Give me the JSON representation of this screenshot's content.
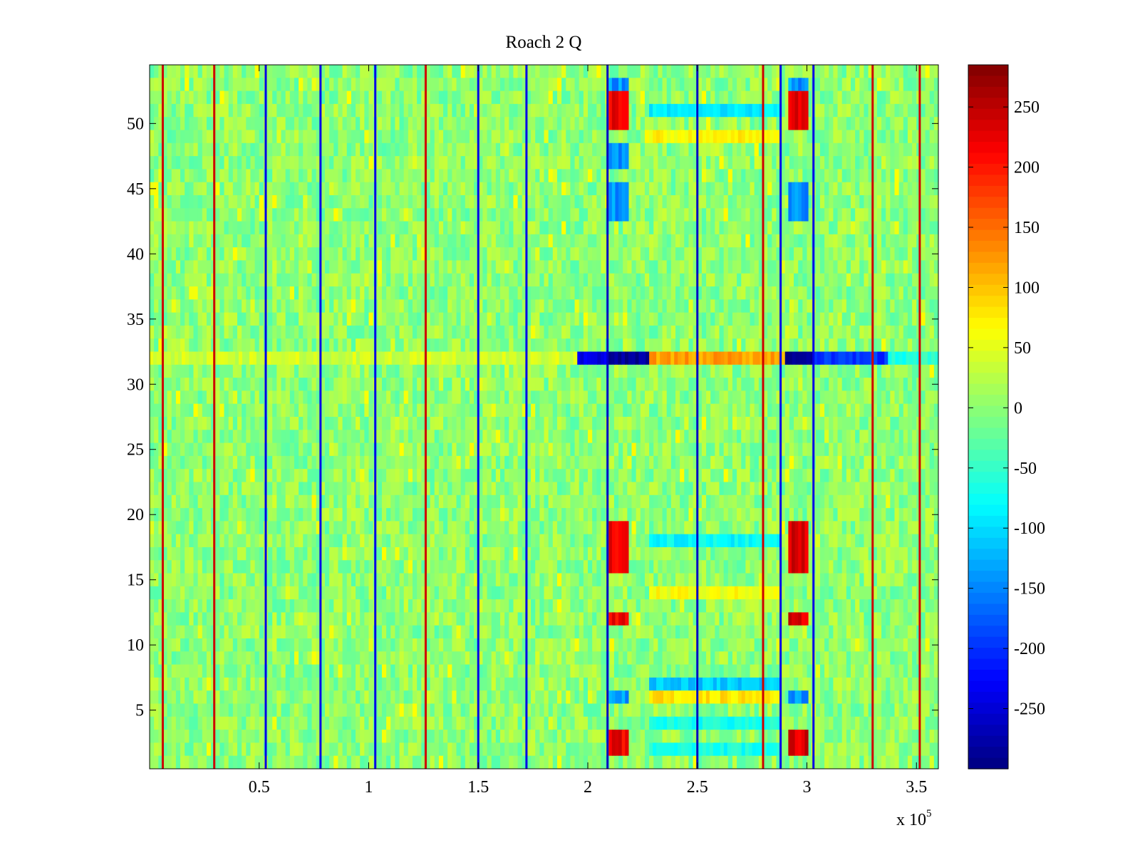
{
  "chart_data": {
    "type": "heatmap",
    "title": "Roach 2 Q",
    "xlabel": "",
    "ylabel": "",
    "x_range": [
      0,
      360000
    ],
    "y_range": [
      0.5,
      54.5
    ],
    "x_ticks": [
      50000,
      100000,
      150000,
      200000,
      250000,
      300000,
      350000
    ],
    "x_tick_labels": [
      "0.5",
      "1",
      "1.5",
      "2",
      "2.5",
      "3",
      "3.5"
    ],
    "x_exponent_prefix": "x 10",
    "x_exponent": "5",
    "y_ticks": [
      5,
      10,
      15,
      20,
      25,
      30,
      35,
      40,
      45,
      50
    ],
    "y_tick_labels": [
      "5",
      "10",
      "15",
      "20",
      "25",
      "30",
      "35",
      "40",
      "45",
      "50"
    ],
    "colorbar": {
      "colormap": "jet",
      "range": [
        -300,
        285
      ],
      "ticks": [
        250,
        200,
        150,
        100,
        50,
        0,
        -50,
        -100,
        -150,
        -200,
        -250
      ],
      "tick_labels": [
        "250",
        "200",
        "150",
        "100",
        "50",
        "0",
        "-50",
        "-100",
        "-150",
        "-200",
        "-250"
      ]
    },
    "background_level": 0,
    "narrow_vertical_lines": [
      {
        "x": 6000,
        "value": 240
      },
      {
        "x": 29500,
        "value": 240
      },
      {
        "x": 53000,
        "value": -240
      },
      {
        "x": 78000,
        "value": -240
      },
      {
        "x": 103000,
        "value": -240
      },
      {
        "x": 126000,
        "value": 240
      },
      {
        "x": 150000,
        "value": -240
      },
      {
        "x": 172000,
        "value": -240
      },
      {
        "x": 209000,
        "value": -260
      },
      {
        "x": 250000,
        "value": -260
      },
      {
        "x": 280000,
        "value": 240
      },
      {
        "x": 288000,
        "value": -240
      },
      {
        "x": 303000,
        "value": -240
      },
      {
        "x": 330000,
        "value": 240
      },
      {
        "x": 351500,
        "value": 240
      }
    ],
    "bright_columns": [
      {
        "x_range": [
          209500,
          218500
        ],
        "y_ranges": [
          [
            49.5,
            52.5
          ],
          [
            15.5,
            19.5
          ],
          [
            11.5,
            12.5
          ],
          [
            1.5,
            3.5
          ]
        ],
        "value": 220
      },
      {
        "x_range": [
          291500,
          300500
        ],
        "y_ranges": [
          [
            49.5,
            52.5
          ],
          [
            15.5,
            19.5
          ],
          [
            11.5,
            12.5
          ],
          [
            1.5,
            3.5
          ]
        ],
        "value": 230
      }
    ],
    "dark_columns": [
      {
        "x_range": [
          209500,
          218500
        ],
        "y_ranges": [
          [
            52.5,
            53.5
          ],
          [
            46.5,
            48.5
          ],
          [
            42.5,
            45.5
          ],
          [
            5.5,
            6.5
          ]
        ],
        "value": -140
      },
      {
        "x_range": [
          291500,
          300500
        ],
        "y_ranges": [
          [
            52.5,
            53.5
          ],
          [
            42.5,
            45.5
          ],
          [
            5.5,
            6.5
          ]
        ],
        "value": -140
      }
    ],
    "horizontal_bands": [
      {
        "x_range": [
          195000,
          360000
        ],
        "y": 32,
        "segments": [
          {
            "x_range": [
              195000,
              209000
            ],
            "value": -240
          },
          {
            "x_range": [
              209000,
              228000
            ],
            "value": -290
          },
          {
            "x_range": [
              228000,
              290000
            ],
            "value": 120
          },
          {
            "x_range": [
              290000,
              303000
            ],
            "value": -290
          },
          {
            "x_range": [
              303000,
              337000
            ],
            "value": -200
          },
          {
            "x_range": [
              337000,
              360000
            ],
            "value": -60
          }
        ]
      },
      {
        "x_range": [
          228000,
          288000
        ],
        "y": 49,
        "value": 70
      },
      {
        "x_range": [
          228000,
          288000
        ],
        "y": 51,
        "value": -90
      },
      {
        "x_range": [
          228000,
          288000
        ],
        "y": 18,
        "value": -80
      },
      {
        "x_range": [
          228000,
          288000
        ],
        "y": 14,
        "value": 60
      },
      {
        "x_range": [
          228000,
          288000
        ],
        "y": 7,
        "value": -110
      },
      {
        "x_range": [
          228000,
          288000
        ],
        "y": 6,
        "value": 80
      },
      {
        "x_range": [
          228000,
          288000
        ],
        "y": 4,
        "value": -70
      },
      {
        "x_range": [
          228000,
          288000
        ],
        "y": 2,
        "value": -70
      },
      {
        "x_range": [
          0,
          195000
        ],
        "y": 32,
        "value": 40
      }
    ]
  }
}
